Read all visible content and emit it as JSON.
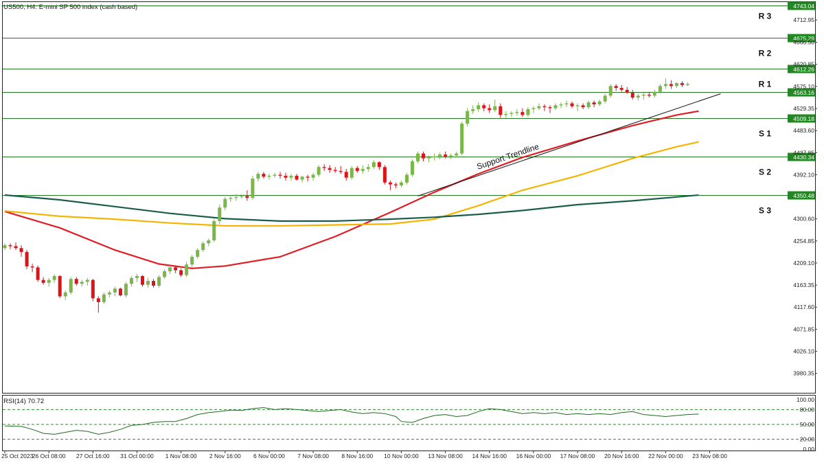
{
  "chart_data": {
    "type": "candlestick",
    "title": "US500, H4:  E-mini SP 500 index (cash based)",
    "y_ticks": [
      "4712.95",
      "4666.50",
      "4620.85",
      "4575.10",
      "4529.35",
      "4483.60",
      "4437.85",
      "4392.10",
      "4300.60",
      "4254.85",
      "4209.10",
      "4163.35",
      "4117.60",
      "4071.85",
      "4026.10",
      "3980.35"
    ],
    "y_tick_values": [
      4712.95,
      4666.5,
      4620.85,
      4575.1,
      4529.35,
      4483.6,
      4437.85,
      4392.1,
      4300.6,
      4254.85,
      4209.1,
      4163.35,
      4117.6,
      4071.85,
      4026.1,
      3980.35
    ],
    "ylim": [
      3940,
      4750
    ],
    "x_ticks": [
      "25 Oct 2023",
      "26 Oct 08:00",
      "27 Oct 16:00",
      "31 Oct 00:00",
      "1 Nov 08:00",
      "2 Nov 16:00",
      "6 Nov 00:00",
      "7 Nov 08:00",
      "8 Nov 16:00",
      "10 Nov 00:00",
      "13 Nov 08:00",
      "14 Nov 16:00",
      "16 Nov 00:00",
      "17 Nov 08:00",
      "20 Nov 16:00",
      "22 Nov 00:00",
      "23 Nov 08:00"
    ],
    "x_tick_bars": [
      0,
      8,
      16,
      24,
      32,
      40,
      48,
      56,
      64,
      72,
      80,
      88,
      96,
      104,
      112,
      120,
      128
    ],
    "levels": [
      {
        "label": "R 3",
        "price": "4743.04",
        "value": 4743.04
      },
      {
        "label": "R 2",
        "price": "4675.29",
        "value": 4675.29
      },
      {
        "label": "R 1",
        "price": "4612.26",
        "value": 4612.26
      },
      {
        "label": "",
        "price": "4563.16",
        "value": 4563.16
      },
      {
        "label": "S 1",
        "price": "4509.18",
        "value": 4509.18
      },
      {
        "label": "S 2",
        "price": "4430.34",
        "value": 4430.34
      },
      {
        "label": "S 3",
        "price": "4350.48",
        "value": 4350.48
      }
    ],
    "trendline": {
      "label": "Support Trendline",
      "start": {
        "bar": 75,
        "value": 4348
      },
      "end": {
        "bar": 130,
        "value": 4560
      }
    },
    "ohlc": [
      [
        4240,
        4250,
        4236,
        4246
      ],
      [
        4246,
        4250,
        4238,
        4244
      ],
      [
        4244,
        4252,
        4236,
        4240
      ],
      [
        4240,
        4246,
        4222,
        4232
      ],
      [
        4232,
        4236,
        4196,
        4202
      ],
      [
        4202,
        4208,
        4190,
        4200
      ],
      [
        4200,
        4204,
        4170,
        4174
      ],
      [
        4174,
        4180,
        4164,
        4168
      ],
      [
        4168,
        4178,
        4160,
        4174
      ],
      [
        4174,
        4186,
        4168,
        4182
      ],
      [
        4182,
        4184,
        4136,
        4140
      ],
      [
        4140,
        4152,
        4132,
        4148
      ],
      [
        4148,
        4180,
        4144,
        4176
      ],
      [
        4176,
        4180,
        4162,
        4166
      ],
      [
        4166,
        4174,
        4160,
        4170
      ],
      [
        4170,
        4178,
        4162,
        4174
      ],
      [
        4174,
        4176,
        4130,
        4136
      ],
      [
        4136,
        4140,
        4106,
        4128
      ],
      [
        4128,
        4148,
        4124,
        4144
      ],
      [
        4144,
        4152,
        4138,
        4148
      ],
      [
        4148,
        4160,
        4140,
        4156
      ],
      [
        4156,
        4158,
        4140,
        4142
      ],
      [
        4142,
        4170,
        4138,
        4166
      ],
      [
        4166,
        4182,
        4160,
        4178
      ],
      [
        4178,
        4186,
        4170,
        4182
      ],
      [
        4182,
        4184,
        4160,
        4164
      ],
      [
        4164,
        4178,
        4158,
        4172
      ],
      [
        4172,
        4176,
        4158,
        4162
      ],
      [
        4162,
        4184,
        4158,
        4180
      ],
      [
        4180,
        4196,
        4176,
        4192
      ],
      [
        4192,
        4204,
        4186,
        4200
      ],
      [
        4200,
        4202,
        4188,
        4194
      ],
      [
        4194,
        4198,
        4180,
        4184
      ],
      [
        4184,
        4212,
        4180,
        4206
      ],
      [
        4206,
        4226,
        4200,
        4222
      ],
      [
        4222,
        4240,
        4218,
        4236
      ],
      [
        4236,
        4254,
        4232,
        4250
      ],
      [
        4250,
        4260,
        4244,
        4256
      ],
      [
        4256,
        4300,
        4252,
        4296
      ],
      [
        4296,
        4330,
        4290,
        4324
      ],
      [
        4324,
        4346,
        4318,
        4342
      ],
      [
        4342,
        4350,
        4336,
        4344
      ],
      [
        4344,
        4352,
        4338,
        4346
      ],
      [
        4346,
        4352,
        4342,
        4348
      ],
      [
        4348,
        4360,
        4338,
        4344
      ],
      [
        4344,
        4390,
        4340,
        4384
      ],
      [
        4384,
        4398,
        4378,
        4394
      ],
      [
        4394,
        4398,
        4384,
        4388
      ],
      [
        4388,
        4394,
        4382,
        4390
      ],
      [
        4390,
        4396,
        4386,
        4392
      ],
      [
        4392,
        4398,
        4384,
        4390
      ],
      [
        4390,
        4396,
        4380,
        4386
      ],
      [
        4386,
        4394,
        4380,
        4390
      ],
      [
        4390,
        4394,
        4380,
        4382
      ],
      [
        4382,
        4390,
        4376,
        4388
      ],
      [
        4388,
        4392,
        4378,
        4386
      ],
      [
        4386,
        4396,
        4380,
        4392
      ],
      [
        4392,
        4412,
        4388,
        4408
      ],
      [
        4408,
        4414,
        4400,
        4406
      ],
      [
        4406,
        4412,
        4396,
        4402
      ],
      [
        4402,
        4408,
        4396,
        4400
      ],
      [
        4400,
        4410,
        4394,
        4398
      ],
      [
        4398,
        4404,
        4380,
        4386
      ],
      [
        4386,
        4410,
        4382,
        4406
      ],
      [
        4406,
        4410,
        4396,
        4400
      ],
      [
        4400,
        4412,
        4394,
        4404
      ],
      [
        4404,
        4414,
        4398,
        4408
      ],
      [
        4408,
        4422,
        4404,
        4418
      ],
      [
        4418,
        4420,
        4402,
        4408
      ],
      [
        4408,
        4412,
        4372,
        4376
      ],
      [
        4376,
        4380,
        4360,
        4372
      ],
      [
        4372,
        4376,
        4364,
        4370
      ],
      [
        4370,
        4380,
        4366,
        4376
      ],
      [
        4376,
        4396,
        4372,
        4392
      ],
      [
        4392,
        4424,
        4388,
        4420
      ],
      [
        4420,
        4440,
        4416,
        4436
      ],
      [
        4436,
        4440,
        4420,
        4426
      ],
      [
        4426,
        4432,
        4418,
        4428
      ],
      [
        4428,
        4436,
        4422,
        4430
      ],
      [
        4430,
        4438,
        4424,
        4434
      ],
      [
        4434,
        4440,
        4426,
        4430
      ],
      [
        4430,
        4436,
        4424,
        4432
      ],
      [
        4432,
        4440,
        4428,
        4436
      ],
      [
        4436,
        4502,
        4432,
        4498
      ],
      [
        4498,
        4530,
        4492,
        4524
      ],
      [
        4524,
        4536,
        4518,
        4528
      ],
      [
        4528,
        4542,
        4522,
        4536
      ],
      [
        4536,
        4540,
        4524,
        4530
      ],
      [
        4530,
        4538,
        4520,
        4526
      ],
      [
        4526,
        4548,
        4522,
        4534
      ],
      [
        4534,
        4540,
        4510,
        4516
      ],
      [
        4516,
        4524,
        4510,
        4518
      ],
      [
        4518,
        4524,
        4512,
        4520
      ],
      [
        4520,
        4528,
        4514,
        4522
      ],
      [
        4522,
        4530,
        4512,
        4516
      ],
      [
        4516,
        4532,
        4512,
        4528
      ],
      [
        4528,
        4534,
        4520,
        4530
      ],
      [
        4530,
        4540,
        4526,
        4534
      ],
      [
        4534,
        4538,
        4524,
        4532
      ],
      [
        4532,
        4536,
        4520,
        4530
      ],
      [
        4530,
        4540,
        4526,
        4536
      ],
      [
        4536,
        4542,
        4530,
        4538
      ],
      [
        4538,
        4546,
        4532,
        4540
      ],
      [
        4540,
        4544,
        4530,
        4534
      ],
      [
        4534,
        4540,
        4524,
        4536
      ],
      [
        4536,
        4540,
        4528,
        4532
      ],
      [
        4532,
        4546,
        4528,
        4542
      ],
      [
        4542,
        4546,
        4532,
        4538
      ],
      [
        4538,
        4548,
        4534,
        4544
      ],
      [
        4544,
        4560,
        4540,
        4556
      ],
      [
        4556,
        4580,
        4552,
        4576
      ],
      [
        4576,
        4580,
        4566,
        4572
      ],
      [
        4572,
        4578,
        4564,
        4568
      ],
      [
        4568,
        4574,
        4560,
        4562
      ],
      [
        4562,
        4568,
        4548,
        4552
      ],
      [
        4552,
        4560,
        4546,
        4556
      ],
      [
        4556,
        4562,
        4548,
        4558
      ],
      [
        4558,
        4564,
        4552,
        4556
      ],
      [
        4556,
        4568,
        4552,
        4564
      ],
      [
        4564,
        4580,
        4560,
        4576
      ],
      [
        4576,
        4592,
        4570,
        4580
      ],
      [
        4580,
        4588,
        4570,
        4576
      ],
      [
        4576,
        4584,
        4572,
        4582
      ],
      [
        4582,
        4586,
        4574,
        4578
      ],
      [
        4578,
        4584,
        4576,
        4580
      ]
    ],
    "moving_averages": [
      {
        "color": "#e31b23",
        "points": [
          [
            0,
            4316
          ],
          [
            10,
            4282
          ],
          [
            20,
            4236
          ],
          [
            28,
            4207
          ],
          [
            34,
            4198
          ],
          [
            40,
            4203
          ],
          [
            50,
            4222
          ],
          [
            60,
            4264
          ],
          [
            70,
            4314
          ],
          [
            78,
            4356
          ],
          [
            86,
            4394
          ],
          [
            94,
            4428
          ],
          [
            104,
            4462
          ],
          [
            114,
            4494
          ],
          [
            122,
            4516
          ],
          [
            126,
            4524
          ]
        ]
      },
      {
        "color": "#f5b400",
        "points": [
          [
            0,
            4317
          ],
          [
            10,
            4306
          ],
          [
            20,
            4300
          ],
          [
            30,
            4292
          ],
          [
            40,
            4286
          ],
          [
            50,
            4286
          ],
          [
            60,
            4288
          ],
          [
            70,
            4290
          ],
          [
            78,
            4300
          ],
          [
            86,
            4328
          ],
          [
            94,
            4360
          ],
          [
            104,
            4390
          ],
          [
            114,
            4426
          ],
          [
            122,
            4450
          ],
          [
            126,
            4460
          ]
        ]
      },
      {
        "color": "#1c5c4c",
        "points": [
          [
            0,
            4350
          ],
          [
            10,
            4340
          ],
          [
            20,
            4326
          ],
          [
            30,
            4312
          ],
          [
            40,
            4301
          ],
          [
            50,
            4296
          ],
          [
            60,
            4296
          ],
          [
            70,
            4300
          ],
          [
            78,
            4304
          ],
          [
            86,
            4310
          ],
          [
            94,
            4318
          ],
          [
            104,
            4330
          ],
          [
            114,
            4338
          ],
          [
            122,
            4346
          ],
          [
            126,
            4350
          ]
        ]
      }
    ],
    "rsi": {
      "label": "RSI(14) 70.72",
      "y_ticks": [
        "100.00",
        "80.00",
        "50.00",
        "20.00",
        "0.00"
      ],
      "y_tick_values": [
        100,
        80,
        50,
        20,
        0
      ],
      "levels": [
        80,
        50,
        20
      ],
      "ylim": [
        0,
        100
      ],
      "values": [
        [
          0,
          47
        ],
        [
          3,
          46
        ],
        [
          5,
          40
        ],
        [
          7,
          32
        ],
        [
          9,
          30
        ],
        [
          11,
          34
        ],
        [
          13,
          38
        ],
        [
          15,
          36
        ],
        [
          17,
          30
        ],
        [
          19,
          34
        ],
        [
          21,
          40
        ],
        [
          23,
          48
        ],
        [
          25,
          50
        ],
        [
          27,
          54
        ],
        [
          29,
          56
        ],
        [
          31,
          56
        ],
        [
          33,
          62
        ],
        [
          35,
          70
        ],
        [
          37,
          74
        ],
        [
          39,
          76
        ],
        [
          41,
          79
        ],
        [
          43,
          78
        ],
        [
          45,
          82
        ],
        [
          47,
          84
        ],
        [
          49,
          80
        ],
        [
          51,
          82
        ],
        [
          53,
          80
        ],
        [
          55,
          78
        ],
        [
          57,
          76
        ],
        [
          59,
          78
        ],
        [
          61,
          80
        ],
        [
          63,
          75
        ],
        [
          65,
          72
        ],
        [
          67,
          74
        ],
        [
          69,
          72
        ],
        [
          71,
          66
        ],
        [
          72,
          56
        ],
        [
          74,
          54
        ],
        [
          76,
          62
        ],
        [
          78,
          68
        ],
        [
          80,
          70
        ],
        [
          82,
          66
        ],
        [
          84,
          68
        ],
        [
          86,
          76
        ],
        [
          88,
          82
        ],
        [
          90,
          80
        ],
        [
          92,
          76
        ],
        [
          94,
          72
        ],
        [
          96,
          74
        ],
        [
          98,
          72
        ],
        [
          100,
          74
        ],
        [
          102,
          70
        ],
        [
          104,
          72
        ],
        [
          106,
          70
        ],
        [
          108,
          72
        ],
        [
          110,
          70
        ],
        [
          112,
          74
        ],
        [
          114,
          76
        ],
        [
          116,
          70
        ],
        [
          118,
          68
        ],
        [
          120,
          66
        ],
        [
          122,
          68
        ],
        [
          124,
          70
        ],
        [
          126,
          71
        ]
      ]
    }
  }
}
